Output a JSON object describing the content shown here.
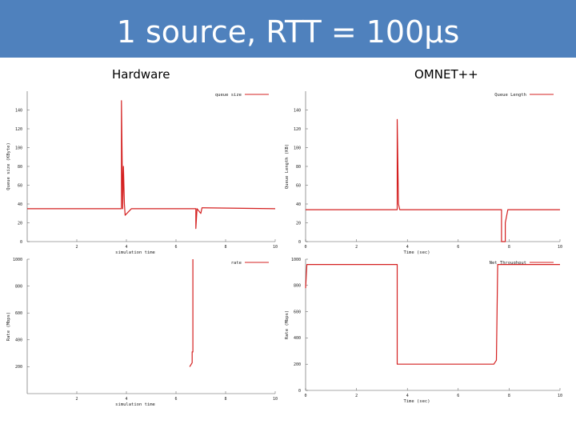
{
  "slide": {
    "title": "1 source, RTT = 100µs",
    "left_label": "Hardware",
    "right_label": "OMNET++",
    "series_color": "#d42020",
    "title_bar_color": "#4f81bd"
  },
  "chart_data": [
    {
      "id": "hw-queue",
      "type": "line",
      "title": "",
      "xlabel": "simulation time",
      "ylabel": "Queue size (KByte)",
      "xlim": [
        0,
        10
      ],
      "ylim": [
        0,
        160
      ],
      "xticks": [
        "2",
        "4",
        "6",
        "8",
        "10"
      ],
      "yticks": [
        "0",
        "20",
        "40",
        "60",
        "80",
        "100",
        "120",
        "140"
      ],
      "legend": "queue size",
      "legend_position": "top-right",
      "series": [
        {
          "name": "queue size",
          "points": [
            [
              0,
              35
            ],
            [
              2,
              35
            ],
            [
              3.8,
              35
            ],
            [
              3.8,
              150
            ],
            [
              3.85,
              35
            ],
            [
              3.88,
              80
            ],
            [
              3.92,
              40
            ],
            [
              3.95,
              28
            ],
            [
              4.2,
              35
            ],
            [
              6.8,
              35
            ],
            [
              6.8,
              14
            ],
            [
              6.85,
              35
            ],
            [
              7.0,
              30
            ],
            [
              7.05,
              36
            ],
            [
              10,
              35
            ]
          ]
        }
      ]
    },
    {
      "id": "omnet-queue",
      "type": "line",
      "title": "",
      "xlabel": "Time (sec)",
      "ylabel": "Queue Length (KB)",
      "xlim": [
        0,
        10
      ],
      "ylim": [
        0,
        160
      ],
      "xticks": [
        "0",
        "2",
        "4",
        "6",
        "8",
        "10"
      ],
      "yticks": [
        "0",
        "20",
        "40",
        "60",
        "80",
        "100",
        "120",
        "140"
      ],
      "legend": "Queue Length",
      "legend_position": "top-right",
      "series": [
        {
          "name": "Queue Length",
          "points": [
            [
              0,
              34
            ],
            [
              3.6,
              34
            ],
            [
              3.6,
              130
            ],
            [
              3.65,
              40
            ],
            [
              3.7,
              34
            ],
            [
              7.7,
              34
            ],
            [
              7.7,
              0
            ],
            [
              7.85,
              0
            ],
            [
              7.85,
              20
            ],
            [
              7.95,
              34
            ],
            [
              10,
              34
            ]
          ]
        }
      ]
    },
    {
      "id": "hw-rate",
      "type": "line",
      "title": "",
      "xlabel": "simulation time",
      "ylabel": "Rate (Mbps)",
      "xlim": [
        0,
        10
      ],
      "ylim": [
        0,
        1000
      ],
      "xticks": [
        "2",
        "4",
        "6",
        "8",
        "10"
      ],
      "yticks": [
        "200",
        "400",
        "600",
        "800",
        "1000"
      ],
      "legend": "rate",
      "legend_position": "top-right",
      "series": [
        {
          "name": "rate",
          "points": [
            [
              6.55,
              200
            ],
            [
              6.65,
              230
            ],
            [
              6.65,
              310
            ],
            [
              6.68,
              310
            ],
            [
              6.68,
              1000
            ]
          ]
        }
      ]
    },
    {
      "id": "omnet-rate",
      "type": "line",
      "title": "",
      "xlabel": "Time (sec)",
      "ylabel": "Rate (Mbps)",
      "xlim": [
        0,
        10
      ],
      "ylim": [
        0,
        1000
      ],
      "xticks": [
        "0",
        "2",
        "4",
        "6",
        "8",
        "10"
      ],
      "yticks": [
        "0",
        "200",
        "400",
        "600",
        "800",
        "1000"
      ],
      "legend": "Net Throughput",
      "legend_position": "top-right",
      "series": [
        {
          "name": "Net Throughput",
          "points": [
            [
              0,
              780
            ],
            [
              0.05,
              960
            ],
            [
              3.6,
              960
            ],
            [
              3.6,
              200
            ],
            [
              7.4,
              200
            ],
            [
              7.5,
              230
            ],
            [
              7.55,
              960
            ],
            [
              10,
              960
            ]
          ]
        }
      ]
    }
  ]
}
